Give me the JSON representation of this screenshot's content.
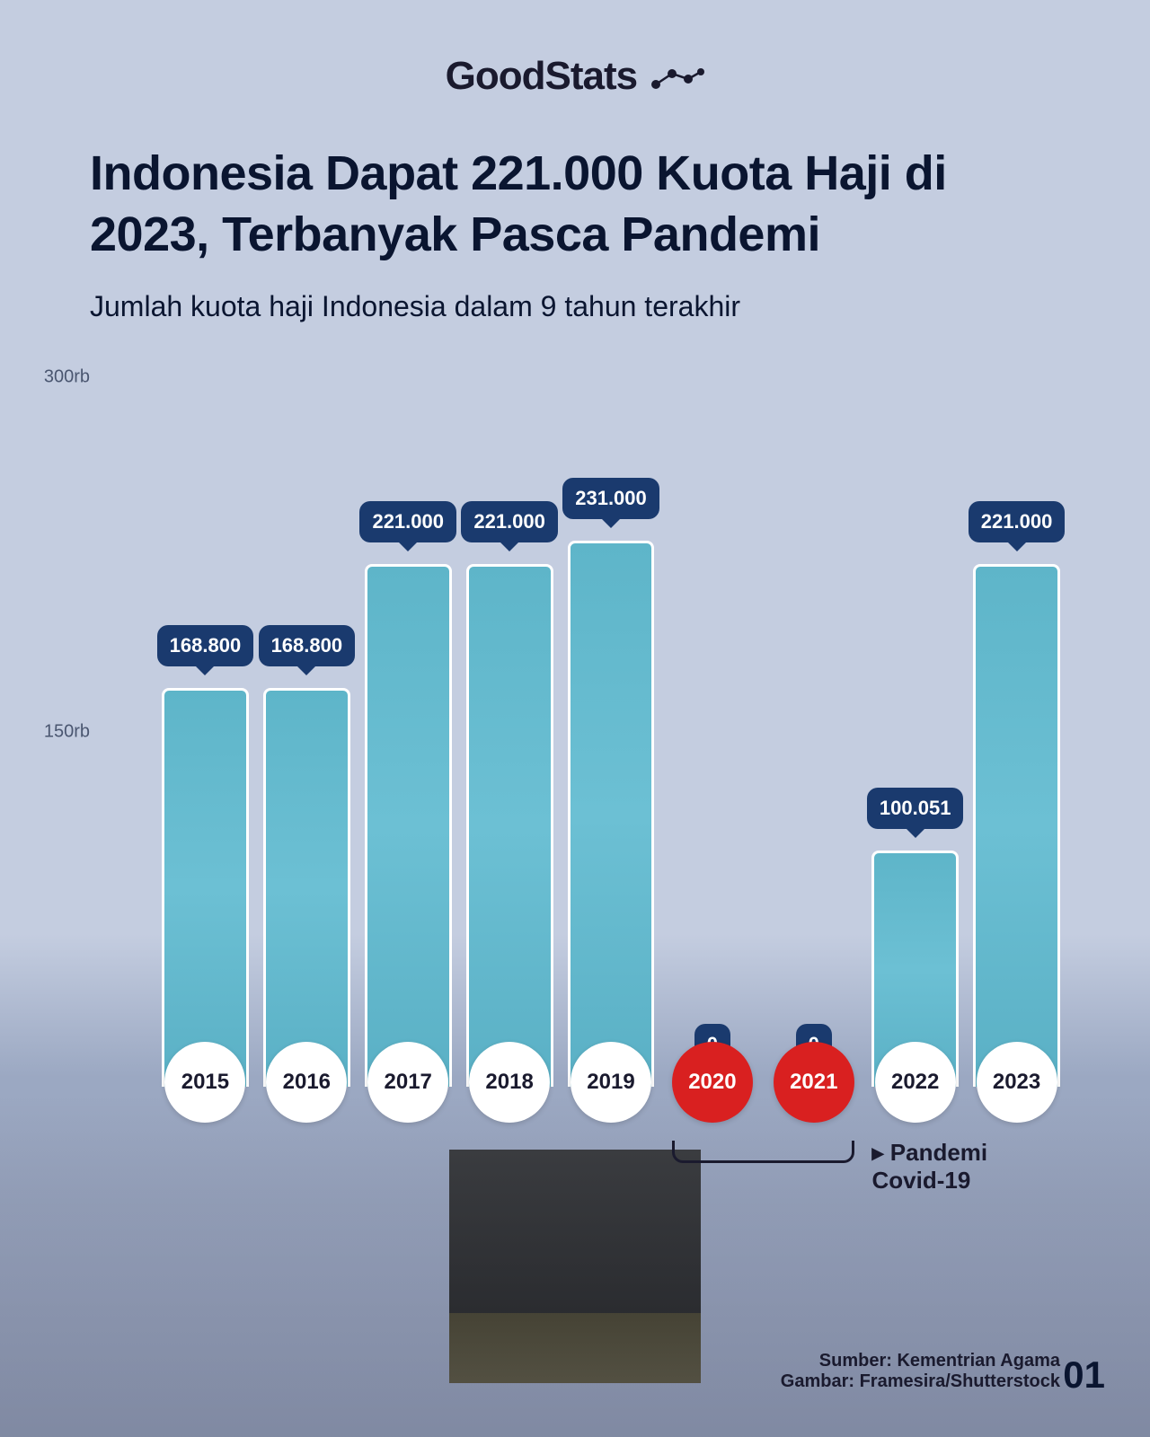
{
  "logo": {
    "text_bold": "Good",
    "text_light": "Stats"
  },
  "title": "Indonesia Dapat 221.000 Kuota Haji di 2023, Terbanyak Pasca Pandemi",
  "subtitle": "Jumlah kuota haji Indonesia dalam 9 tahun terakhir",
  "chart": {
    "type": "bar",
    "y_axis": {
      "max": 300000,
      "min": 0,
      "ticks": [
        {
          "value": 300000,
          "label": "300rb"
        },
        {
          "value": 150000,
          "label": "150rb"
        }
      ],
      "label_fontsize": 20,
      "label_color": "#4a5670"
    },
    "bars": [
      {
        "year": "2015",
        "value": 168800,
        "label": "168.800",
        "pandemic": false
      },
      {
        "year": "2016",
        "value": 168800,
        "label": "168.800",
        "pandemic": false
      },
      {
        "year": "2017",
        "value": 221000,
        "label": "221.000",
        "pandemic": false
      },
      {
        "year": "2018",
        "value": 221000,
        "label": "221.000",
        "pandemic": false
      },
      {
        "year": "2019",
        "value": 231000,
        "label": "231.000",
        "pandemic": false
      },
      {
        "year": "2020",
        "value": 0,
        "label": "0",
        "pandemic": true
      },
      {
        "year": "2021",
        "value": 0,
        "label": "0",
        "pandemic": true
      },
      {
        "year": "2022",
        "value": 100051,
        "label": "100.051",
        "pandemic": false
      },
      {
        "year": "2023",
        "value": 221000,
        "label": "221.000",
        "pandemic": false
      }
    ],
    "bar_color": "#5eb5c9",
    "bar_border_color": "#ffffff",
    "bubble_bg": "#1a3a6e",
    "bubble_text_color": "#ffffff",
    "year_circle_bg": "#ffffff",
    "year_circle_pandemic_bg": "#d92020",
    "pandemic_annotation": "▸ Pandemi Covid-19"
  },
  "footer": {
    "source_prefix": "Sumber: ",
    "source": "Kementrian Agama",
    "image_prefix": "Gambar: ",
    "image_credit": "Framesira/Shutterstock"
  },
  "page_number": "01",
  "colors": {
    "bg_top": "#c4cde0",
    "title_color": "#0a1530"
  }
}
